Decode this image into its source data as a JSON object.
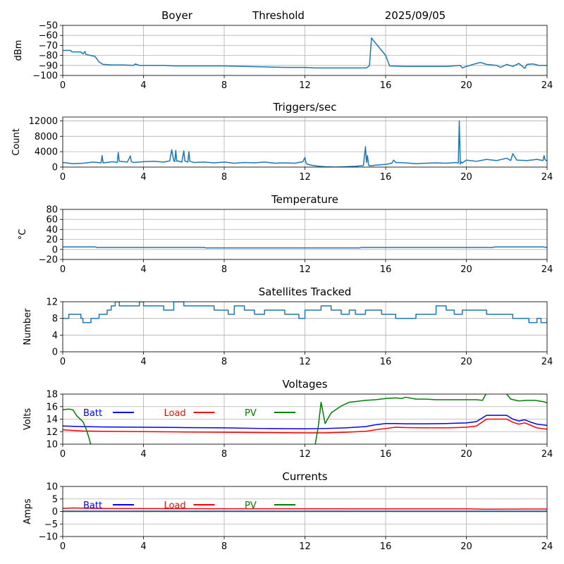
{
  "header": {
    "station": "Boyer",
    "mode": "Threshold",
    "date": "2025/09/05"
  },
  "chart_data": [
    {
      "type": "line",
      "title": "",
      "ylabel": "dBm",
      "xlim": [
        0,
        24
      ],
      "xticks": [
        0,
        4,
        8,
        12,
        16,
        20,
        24
      ],
      "ylim": [
        -100,
        -50
      ],
      "yticks": [
        -100,
        -90,
        -80,
        -70,
        -60,
        -50
      ],
      "grid": true,
      "series": [
        {
          "color": "#1f77b4",
          "x": [
            0,
            0.4,
            0.45,
            0.9,
            1.0,
            1.1,
            1.15,
            1.6,
            1.8,
            2.0,
            2.4,
            3.0,
            3.5,
            3.6,
            3.8,
            4.0,
            5.0,
            5.5,
            6.0,
            7.0,
            8.0,
            9.0,
            10.0,
            11.0,
            12.0,
            12.5,
            13.0,
            14.0,
            15.0,
            15.1,
            15.2,
            15.3,
            15.35,
            16.0,
            16.2,
            17.0,
            18.0,
            19.0,
            19.7,
            19.8,
            20.0,
            20.5,
            20.7,
            21.0,
            21.5,
            21.7,
            22.0,
            22.3,
            22.6,
            22.9,
            23.0,
            23.3,
            23.6,
            24.0
          ],
          "y": [
            -75,
            -75,
            -76.5,
            -76.5,
            -78.5,
            -76,
            -79,
            -81,
            -86.5,
            -89,
            -89.5,
            -89.5,
            -90,
            -88.5,
            -90,
            -90,
            -90,
            -90.5,
            -90.5,
            -90.5,
            -90.5,
            -91,
            -91.5,
            -92,
            -92,
            -92.5,
            -92.5,
            -92.5,
            -92.5,
            -92,
            -90,
            -62.5,
            -64,
            -80,
            -90.5,
            -91,
            -91,
            -91,
            -90,
            -92.5,
            -91,
            -88,
            -87,
            -89,
            -90,
            -92,
            -89,
            -91,
            -88,
            -93,
            -89,
            -88.5,
            -90,
            -90
          ]
        }
      ]
    },
    {
      "type": "line",
      "title": "Triggers/sec",
      "ylabel": "Count",
      "xlim": [
        0,
        24
      ],
      "xticks": [
        0,
        4,
        8,
        12,
        16,
        20,
        24
      ],
      "ylim": [
        0,
        13000
      ],
      "yticks": [
        0,
        4000,
        8000,
        12000
      ],
      "grid": true,
      "series": [
        {
          "color": "#1f77b4",
          "x": [
            0,
            0.5,
            1.0,
            1.5,
            1.9,
            1.95,
            2.0,
            2.5,
            2.7,
            2.75,
            2.8,
            3.2,
            3.35,
            3.4,
            3.5,
            4.0,
            4.5,
            5.0,
            5.3,
            5.4,
            5.5,
            5.55,
            5.6,
            5.65,
            5.7,
            5.9,
            6.0,
            6.05,
            6.1,
            6.2,
            6.25,
            6.3,
            6.5,
            7.0,
            7.5,
            8.0,
            8.5,
            9.0,
            9.5,
            10.0,
            10.5,
            11.0,
            11.5,
            11.9,
            12.0,
            12.05,
            12.1,
            12.3,
            12.7,
            13.0,
            13.5,
            14.0,
            14.5,
            14.9,
            15.0,
            15.05,
            15.1,
            15.15,
            15.2,
            15.5,
            16.0,
            16.3,
            16.4,
            16.5,
            17.0,
            17.5,
            18.0,
            18.5,
            19.0,
            19.5,
            19.6,
            19.65,
            19.7,
            19.75,
            19.8,
            20.0,
            20.5,
            21.0,
            21.5,
            22.0,
            22.2,
            22.3,
            22.5,
            23.0,
            23.5,
            23.8,
            23.85,
            23.9,
            24.0
          ],
          "y": [
            1200,
            900,
            1000,
            1300,
            1100,
            3000,
            1100,
            1400,
            1200,
            3800,
            1500,
            1300,
            2900,
            1400,
            1200,
            1400,
            1500,
            1300,
            1600,
            4500,
            1700,
            1400,
            4300,
            1500,
            1600,
            1300,
            4200,
            1600,
            1500,
            1300,
            4000,
            1500,
            1200,
            1300,
            1100,
            1300,
            1000,
            1200,
            1100,
            1300,
            1000,
            1100,
            1000,
            1400,
            2500,
            1200,
            800,
            500,
            200,
            100,
            0,
            100,
            200,
            400,
            5300,
            1200,
            3000,
            600,
            300,
            500,
            700,
            1000,
            1800,
            1200,
            1100,
            900,
            1000,
            1100,
            1000,
            1200,
            1000,
            12000,
            800,
            1300,
            1100,
            1800,
            1500,
            2000,
            1700,
            2300,
            1700,
            3500,
            1800,
            1700,
            2000,
            1700,
            3000,
            1900,
            1600
          ]
        }
      ]
    },
    {
      "type": "line",
      "title": "Temperature",
      "ylabel": "°C",
      "xlim": [
        0,
        24
      ],
      "xticks": [
        0,
        4,
        8,
        12,
        16,
        20,
        24
      ],
      "ylim": [
        -20,
        80
      ],
      "yticks": [
        -20,
        0,
        20,
        40,
        60,
        80
      ],
      "grid": true,
      "series": [
        {
          "color": "#1f77b4",
          "x": [
            0,
            1.6,
            1.7,
            7.0,
            7.1,
            12.0,
            14.7,
            14.8,
            21.3,
            21.4,
            23.8,
            24.0
          ],
          "y": [
            5,
            5,
            4,
            4,
            3,
            3,
            3,
            4,
            4,
            5,
            5,
            4
          ]
        }
      ]
    },
    {
      "type": "line",
      "title": "Satellites Tracked",
      "ylabel": "Number",
      "xlim": [
        0,
        24
      ],
      "xticks": [
        0,
        4,
        8,
        12,
        16,
        20,
        24
      ],
      "ylim": [
        0,
        12
      ],
      "yticks": [
        0,
        4,
        8,
        12
      ],
      "grid": true,
      "step": true,
      "series": [
        {
          "color": "#1f77b4",
          "x": [
            0,
            0.3,
            0.9,
            1.0,
            1.4,
            1.8,
            2.2,
            2.4,
            2.6,
            2.8,
            3.3,
            3.8,
            4.0,
            4.5,
            5.0,
            5.5,
            6.0,
            6.5,
            7.0,
            7.5,
            8.2,
            8.5,
            9.0,
            9.5,
            10.0,
            10.5,
            11.0,
            11.3,
            11.7,
            12.0,
            12.8,
            13.3,
            13.8,
            14.2,
            14.5,
            15.0,
            15.5,
            15.8,
            16.5,
            17.0,
            17.5,
            18.0,
            18.5,
            19.0,
            19.4,
            19.8,
            20.0,
            20.5,
            21.0,
            21.5,
            22.0,
            22.3,
            22.8,
            23.1,
            23.5,
            23.7,
            24.0
          ],
          "y": [
            8,
            9,
            8,
            7,
            8,
            9,
            10,
            11,
            12,
            11,
            11,
            12,
            11,
            11,
            10,
            12,
            11,
            11,
            11,
            10,
            9,
            11,
            10,
            9,
            10,
            10,
            9,
            9,
            8,
            10,
            11,
            10,
            9,
            10,
            9,
            10,
            10,
            9,
            8,
            8,
            9,
            9,
            11,
            10,
            9,
            10,
            10,
            10,
            9,
            9,
            9,
            8,
            8,
            7,
            8,
            7,
            8
          ]
        }
      ]
    },
    {
      "type": "line",
      "title": "Voltages",
      "ylabel": "Volts",
      "xlim": [
        0,
        24
      ],
      "xticks": [
        0,
        4,
        8,
        12,
        16,
        20,
        24
      ],
      "ylim": [
        10,
        18
      ],
      "yticks": [
        10,
        12,
        14,
        16,
        18
      ],
      "grid": true,
      "legend": "top-left, horizontal",
      "series": [
        {
          "name": "Batt",
          "color": "#0000ff",
          "x": [
            0,
            1,
            2,
            4,
            6,
            8,
            10,
            12,
            13,
            14,
            15,
            15.5,
            16,
            16.5,
            17,
            18,
            19,
            20,
            20.5,
            21,
            21.5,
            22,
            22.3,
            22.6,
            22.9,
            23.2,
            23.5,
            24.0
          ],
          "y": [
            12.9,
            12.8,
            12.75,
            12.7,
            12.65,
            12.6,
            12.5,
            12.45,
            12.5,
            12.6,
            12.8,
            13.1,
            13.3,
            13.3,
            13.25,
            13.25,
            13.3,
            13.4,
            13.6,
            14.6,
            14.6,
            14.6,
            14.0,
            13.7,
            13.9,
            13.5,
            13.2,
            13.0
          ]
        },
        {
          "name": "Load",
          "color": "#ff0000",
          "x": [
            0,
            1,
            2,
            4,
            6,
            8,
            10,
            12,
            13,
            14,
            15,
            15.5,
            16,
            16.5,
            17,
            18,
            19,
            20,
            20.5,
            21,
            21.5,
            22,
            22.3,
            22.6,
            22.9,
            23.2,
            23.5,
            24.0
          ],
          "y": [
            12.3,
            12.1,
            12.05,
            12.0,
            11.95,
            11.9,
            11.85,
            11.8,
            11.8,
            11.9,
            12.05,
            12.3,
            12.5,
            12.7,
            12.65,
            12.6,
            12.6,
            12.7,
            12.9,
            14.0,
            14.0,
            14.0,
            13.5,
            13.2,
            13.4,
            13.0,
            12.6,
            12.4
          ]
        },
        {
          "name": "PV",
          "color": "#008000",
          "x": [
            0,
            0.3,
            0.5,
            0.7,
            1.0,
            1.15,
            1.3,
            1.4,
            12.5,
            12.65,
            12.8,
            13.0,
            13.3,
            13.8,
            14.2,
            14.5,
            15.0,
            15.5,
            16.0,
            16.5,
            16.8,
            17.0,
            17.5,
            18.0,
            18.5,
            19.0,
            19.5,
            20.0,
            20.5,
            20.8,
            21.0,
            21.9,
            22.0,
            22.2,
            22.6,
            23.0,
            23.4,
            23.8,
            24.0
          ],
          "y": [
            15.5,
            15.6,
            15.5,
            14.5,
            13.6,
            12.5,
            11.0,
            9.8,
            9.8,
            12.5,
            16.7,
            13.3,
            15.0,
            16.1,
            16.7,
            16.8,
            17.0,
            17.1,
            17.3,
            17.4,
            17.3,
            17.5,
            17.2,
            17.2,
            17.1,
            17.1,
            17.1,
            17.1,
            17.1,
            17.0,
            18.2,
            18.2,
            18.0,
            17.2,
            16.9,
            17.0,
            17.0,
            16.8,
            16.6
          ]
        }
      ]
    },
    {
      "type": "line",
      "title": "Currents",
      "ylabel": "Amps",
      "xlim": [
        0,
        24
      ],
      "xticks": [
        0,
        4,
        8,
        12,
        16,
        20,
        24
      ],
      "ylim": [
        -10,
        10
      ],
      "yticks": [
        -10,
        -5,
        0,
        5,
        10
      ],
      "grid": true,
      "legend": "top-left, horizontal",
      "series": [
        {
          "name": "Batt",
          "color": "#0000ff",
          "x": [
            0,
            24
          ],
          "y": [
            0.1,
            0.1
          ]
        },
        {
          "name": "Load",
          "color": "#ff0000",
          "x": [
            0,
            0.5,
            1.0,
            2.0,
            4.0,
            8.0,
            12.0,
            16.0,
            20.0,
            20.5,
            21.0,
            22.0,
            23.0,
            24.0
          ],
          "y": [
            1.2,
            1.4,
            1.3,
            1.2,
            1.15,
            1.1,
            1.1,
            1.05,
            1.05,
            1.0,
            0.9,
            0.95,
            1.0,
            1.0
          ]
        },
        {
          "name": "PV",
          "color": "#008000",
          "x": [
            0,
            24
          ],
          "y": [
            0.0,
            0.0
          ]
        }
      ]
    }
  ]
}
